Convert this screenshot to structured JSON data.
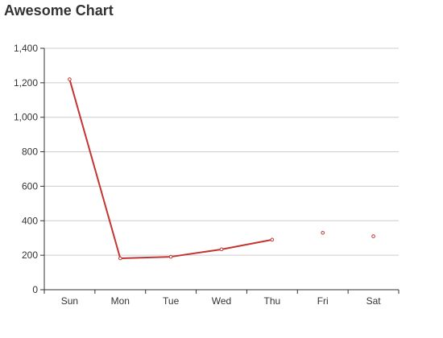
{
  "chart_data": {
    "type": "line",
    "title": "Awesome Chart",
    "categories": [
      "Sun",
      "Mon",
      "Tue",
      "Wed",
      "Thu",
      "Fri",
      "Sat"
    ],
    "series": [
      {
        "values": [
          1220,
          182,
          191,
          234,
          290,
          null,
          null
        ],
        "color": "#c23531"
      }
    ],
    "points": [
      1220,
      182,
      191,
      234,
      290,
      330,
      310
    ],
    "ylim": [
      0,
      1400
    ],
    "yticks": [
      0,
      200,
      400,
      600,
      800,
      1000,
      1200,
      1400
    ],
    "ytick_labels": [
      "0",
      "200",
      "400",
      "600",
      "800",
      "1,000",
      "1,200",
      "1,400"
    ],
    "grid": true,
    "xlabel": "",
    "ylabel": "",
    "colors": {
      "line": "#c23531",
      "grid": "#cccccc",
      "axis": "#333333",
      "text": "#333333"
    }
  }
}
